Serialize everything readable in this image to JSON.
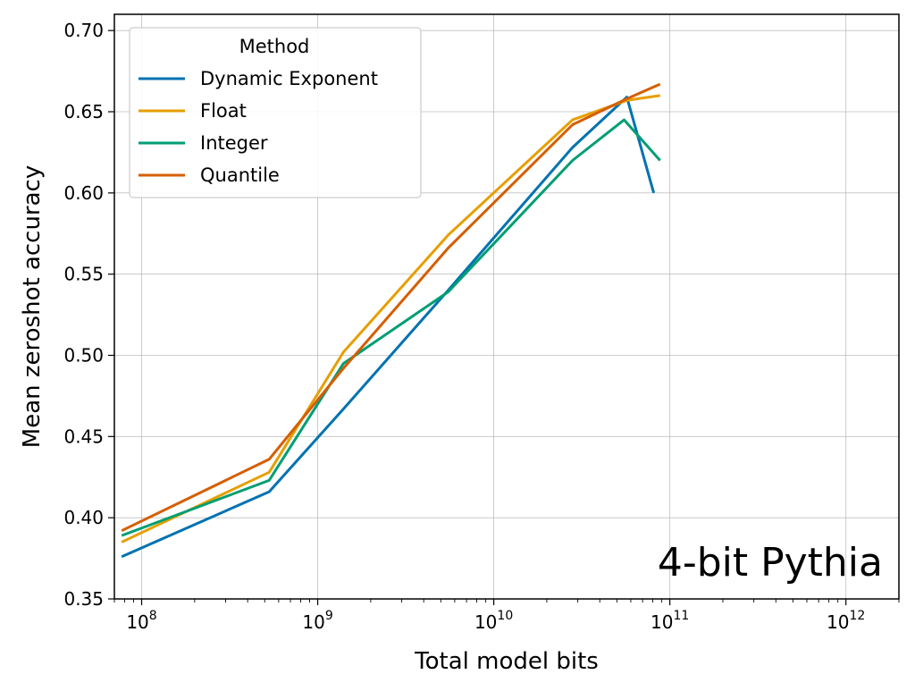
{
  "chart_data": {
    "type": "line",
    "xlabel": "Total model bits",
    "ylabel": "Mean zeroshot accuracy",
    "x_scale": "log",
    "xlim": [
      70000000.0,
      2000000000000.0
    ],
    "ylim": [
      0.35,
      0.71
    ],
    "x_ticks": [
      {
        "value": 100000000.0,
        "base": "10",
        "exp": "8"
      },
      {
        "value": 1000000000.0,
        "base": "10",
        "exp": "9"
      },
      {
        "value": 10000000000.0,
        "base": "10",
        "exp": "10"
      },
      {
        "value": 100000000000.0,
        "base": "10",
        "exp": "11"
      },
      {
        "value": 1000000000000.0,
        "base": "10",
        "exp": "12"
      }
    ],
    "y_ticks": [
      {
        "value": 0.35,
        "label": "0.35"
      },
      {
        "value": 0.4,
        "label": "0.40"
      },
      {
        "value": 0.45,
        "label": "0.45"
      },
      {
        "value": 0.5,
        "label": "0.50"
      },
      {
        "value": 0.55,
        "label": "0.55"
      },
      {
        "value": 0.6,
        "label": "0.60"
      },
      {
        "value": 0.65,
        "label": "0.65"
      },
      {
        "value": 0.7,
        "label": "0.70"
      }
    ],
    "grid": true,
    "legend": {
      "title": "Method",
      "placement": "top-left"
    },
    "annotation": "4-bit Pythia",
    "series": [
      {
        "name": "Dynamic Exponent",
        "color": "#0072b2",
        "points": [
          [
            77000000.0,
            0.376
          ],
          [
            530000000.0,
            0.416
          ],
          [
            1400000000.0,
            0.467
          ],
          [
            5500000000.0,
            0.54
          ],
          [
            28000000000.0,
            0.628
          ],
          [
            57000000000.0,
            0.659
          ],
          [
            81000000000.0,
            0.6
          ]
        ]
      },
      {
        "name": "Float",
        "color": "#e69f00",
        "points": [
          [
            77000000.0,
            0.385
          ],
          [
            530000000.0,
            0.428
          ],
          [
            1400000000.0,
            0.502
          ],
          [
            5500000000.0,
            0.574
          ],
          [
            28000000000.0,
            0.645
          ],
          [
            57000000000.0,
            0.657
          ],
          [
            88000000000.0,
            0.66
          ]
        ]
      },
      {
        "name": "Integer",
        "color": "#009e73",
        "points": [
          [
            77000000.0,
            0.389
          ],
          [
            530000000.0,
            0.423
          ],
          [
            1400000000.0,
            0.495
          ],
          [
            5500000000.0,
            0.539
          ],
          [
            28000000000.0,
            0.62
          ],
          [
            55000000000.0,
            0.645
          ],
          [
            88000000000.0,
            0.62
          ]
        ]
      },
      {
        "name": "Quantile",
        "color": "#d55e00",
        "points": [
          [
            77000000.0,
            0.392
          ],
          [
            530000000.0,
            0.436
          ],
          [
            1400000000.0,
            0.492
          ],
          [
            5500000000.0,
            0.566
          ],
          [
            28000000000.0,
            0.642
          ],
          [
            57000000000.0,
            0.658
          ],
          [
            88000000000.0,
            0.667
          ]
        ]
      }
    ]
  }
}
